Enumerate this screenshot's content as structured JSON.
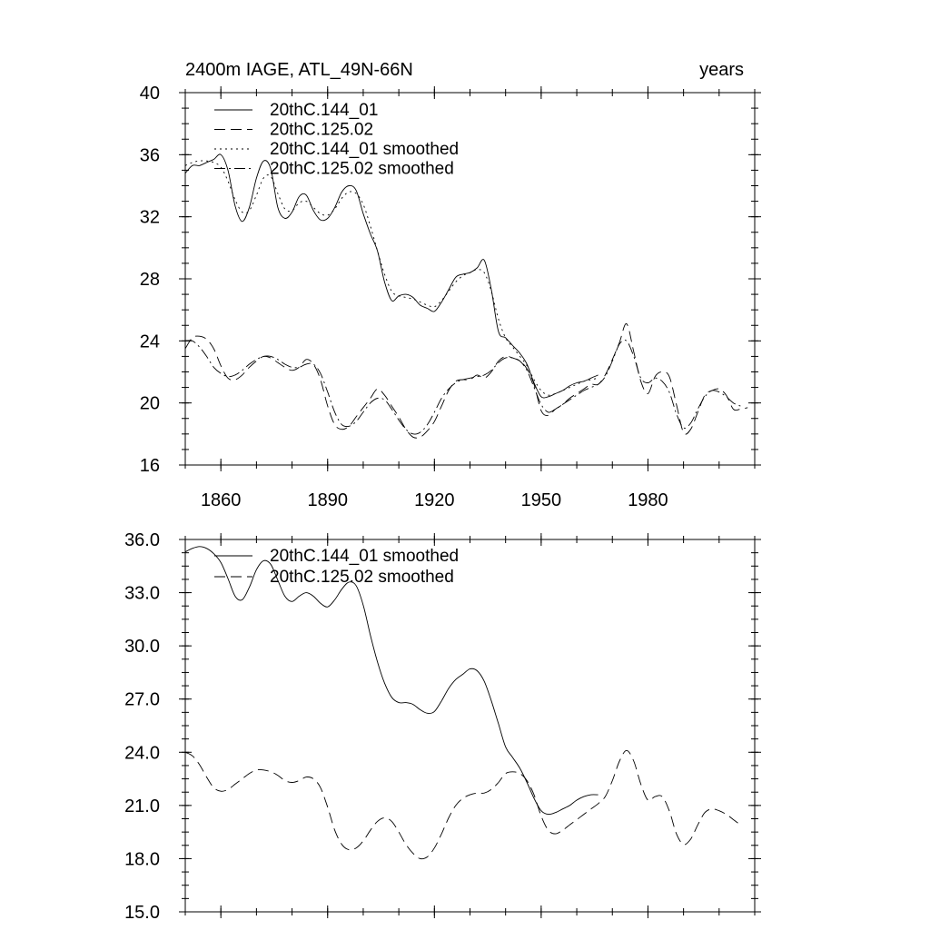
{
  "chart_data": [
    {
      "type": "line",
      "title": "2400m IAGE, ATL_49N-66N",
      "units": "years",
      "xlim": [
        1850,
        2010
      ],
      "ylim": [
        16,
        40
      ],
      "xticks": [
        1860,
        1890,
        1920,
        1950,
        1980
      ],
      "yticks": [
        16,
        20,
        24,
        28,
        32,
        36,
        40
      ],
      "ytick_labels": [
        "16",
        "20",
        "24",
        "28",
        "32",
        "36",
        "40"
      ],
      "legend_position": "top-left",
      "series": [
        {
          "name": "20thC.144_01",
          "style": "solid",
          "x": [
            1850,
            1852,
            1854,
            1856,
            1858,
            1860,
            1862,
            1864,
            1866,
            1868,
            1870,
            1872,
            1874,
            1876,
            1878,
            1880,
            1882,
            1884,
            1886,
            1888,
            1890,
            1892,
            1894,
            1896,
            1898,
            1900,
            1902,
            1904,
            1906,
            1908,
            1910,
            1912,
            1914,
            1916,
            1918,
            1920,
            1922,
            1924,
            1926,
            1928,
            1930,
            1932,
            1934,
            1936,
            1938,
            1940,
            1942,
            1944,
            1946,
            1948,
            1950,
            1952,
            1954,
            1956,
            1958,
            1960,
            1962,
            1964,
            1966
          ],
          "y": [
            34.8,
            35.3,
            35.3,
            35.5,
            35.7,
            36.0,
            35.0,
            32.7,
            31.7,
            32.6,
            34.5,
            35.6,
            35.1,
            32.6,
            31.9,
            32.3,
            33.3,
            33.4,
            32.4,
            31.8,
            31.9,
            32.6,
            33.6,
            34.0,
            33.7,
            32.2,
            30.9,
            29.8,
            27.8,
            26.6,
            26.9,
            27.0,
            26.8,
            26.3,
            26.1,
            25.9,
            26.5,
            27.3,
            28.1,
            28.3,
            28.4,
            28.7,
            29.2,
            27.3,
            24.6,
            24.2,
            23.7,
            23.2,
            22.5,
            21.3,
            20.4,
            20.4,
            20.6,
            20.8,
            21.1,
            21.3,
            21.4,
            21.6,
            21.8
          ]
        },
        {
          "name": "20thC.125.02",
          "style": "dashed",
          "x": [
            1850,
            1852,
            1854,
            1856,
            1858,
            1860,
            1862,
            1864,
            1866,
            1868,
            1870,
            1872,
            1874,
            1876,
            1878,
            1880,
            1882,
            1884,
            1886,
            1888,
            1890,
            1892,
            1894,
            1896,
            1898,
            1900,
            1902,
            1904,
            1906,
            1908,
            1910,
            1912,
            1914,
            1916,
            1918,
            1920,
            1922,
            1924,
            1926,
            1928,
            1930,
            1932,
            1934,
            1936,
            1938,
            1940,
            1942,
            1944,
            1946,
            1948,
            1950,
            1952,
            1954,
            1956,
            1958,
            1960,
            1962,
            1964,
            1966,
            1968,
            1970,
            1972,
            1974,
            1976,
            1978,
            1980,
            1982,
            1984,
            1986,
            1988,
            1990,
            1992,
            1994,
            1996,
            1998,
            2000,
            2002,
            2004,
            2006,
            2008
          ],
          "y": [
            23.5,
            24.2,
            24.3,
            24.1,
            23.5,
            22.4,
            21.6,
            21.5,
            21.8,
            22.3,
            22.7,
            23.0,
            22.9,
            22.6,
            22.3,
            22.1,
            22.3,
            22.8,
            22.5,
            21.5,
            19.8,
            18.6,
            18.3,
            18.5,
            19.1,
            19.7,
            20.3,
            20.9,
            20.5,
            19.8,
            19.1,
            18.3,
            17.8,
            17.8,
            18.2,
            18.8,
            19.8,
            20.8,
            21.4,
            21.5,
            21.5,
            21.8,
            21.6,
            22.0,
            22.7,
            23.0,
            22.9,
            22.7,
            22.2,
            21.2,
            19.5,
            19.2,
            19.6,
            19.9,
            20.3,
            20.6,
            20.9,
            21.2,
            21.2,
            21.8,
            22.8,
            23.9,
            25.1,
            23.3,
            21.4,
            20.6,
            21.7,
            22.0,
            21.7,
            19.9,
            18.1,
            18.3,
            19.4,
            20.5,
            20.8,
            20.9,
            20.5,
            19.6,
            19.6,
            19.7
          ]
        },
        {
          "name": "20thC.144_01 smoothed",
          "style": "dotted",
          "x": [
            1850,
            1852,
            1854,
            1856,
            1858,
            1860,
            1862,
            1864,
            1866,
            1868,
            1870,
            1872,
            1874,
            1876,
            1878,
            1880,
            1882,
            1884,
            1886,
            1888,
            1890,
            1892,
            1894,
            1896,
            1898,
            1900,
            1902,
            1904,
            1906,
            1908,
            1910,
            1912,
            1914,
            1916,
            1918,
            1920,
            1922,
            1924,
            1926,
            1928,
            1930,
            1932,
            1934,
            1936,
            1938,
            1940,
            1942,
            1944,
            1946,
            1948,
            1950,
            1952,
            1954,
            1956,
            1958,
            1960,
            1962,
            1964,
            1966
          ],
          "y": [
            35.3,
            35.5,
            35.6,
            35.6,
            35.5,
            35.2,
            34.3,
            33.1,
            32.3,
            32.4,
            33.4,
            34.5,
            34.6,
            33.5,
            32.5,
            32.4,
            32.9,
            33.0,
            32.6,
            32.2,
            32.1,
            32.5,
            33.2,
            33.6,
            33.5,
            32.8,
            31.4,
            29.8,
            28.3,
            27.2,
            26.9,
            26.8,
            26.7,
            26.5,
            26.3,
            26.2,
            26.6,
            27.2,
            27.8,
            28.2,
            28.4,
            28.6,
            28.4,
            27.2,
            25.4,
            24.2,
            23.6,
            23.0,
            22.4,
            21.5,
            20.8,
            20.5,
            20.6,
            20.8,
            21.0,
            21.2,
            21.4,
            21.5,
            21.6
          ]
        },
        {
          "name": "20thC.125.02 smoothed",
          "style": "dash-dot",
          "x": [
            1850,
            1852,
            1854,
            1856,
            1858,
            1860,
            1862,
            1864,
            1866,
            1868,
            1870,
            1872,
            1874,
            1876,
            1878,
            1880,
            1882,
            1884,
            1886,
            1888,
            1890,
            1892,
            1894,
            1896,
            1898,
            1900,
            1902,
            1904,
            1906,
            1908,
            1910,
            1912,
            1914,
            1916,
            1918,
            1920,
            1922,
            1924,
            1926,
            1928,
            1930,
            1932,
            1934,
            1936,
            1938,
            1940,
            1942,
            1944,
            1946,
            1948,
            1950,
            1952,
            1954,
            1956,
            1958,
            1960,
            1962,
            1964,
            1966,
            1968,
            1970,
            1972,
            1974,
            1976,
            1978,
            1980,
            1982,
            1984,
            1986,
            1988,
            1990,
            1992,
            1994,
            1996,
            1998,
            2000,
            2002,
            2004,
            2006
          ],
          "y": [
            24.0,
            24.0,
            23.6,
            23.0,
            22.3,
            21.9,
            21.7,
            21.8,
            22.1,
            22.5,
            22.8,
            23.0,
            23.0,
            22.8,
            22.5,
            22.3,
            22.3,
            22.5,
            22.5,
            21.9,
            20.7,
            19.4,
            18.6,
            18.5,
            18.8,
            19.4,
            20.0,
            20.3,
            20.2,
            19.6,
            18.9,
            18.3,
            18.0,
            18.1,
            18.6,
            19.4,
            20.3,
            20.9,
            21.3,
            21.5,
            21.6,
            21.7,
            21.8,
            22.1,
            22.6,
            22.9,
            22.9,
            22.7,
            22.1,
            21.0,
            19.9,
            19.4,
            19.6,
            19.9,
            20.2,
            20.5,
            20.8,
            21.0,
            21.2,
            21.7,
            22.7,
            23.8,
            24.0,
            23.0,
            21.6,
            21.3,
            21.6,
            21.4,
            20.7,
            19.3,
            18.4,
            18.7,
            19.6,
            20.4,
            20.8,
            20.7,
            20.4,
            20.0,
            19.8
          ]
        }
      ]
    },
    {
      "type": "line",
      "xlim": [
        1850,
        2010
      ],
      "ylim": [
        15,
        36
      ],
      "xticks": [
        1860,
        1890,
        1920,
        1950,
        1980
      ],
      "yticks": [
        15,
        18,
        21,
        24,
        27,
        30,
        33,
        36
      ],
      "ytick_labels": [
        "15.0",
        "18.0",
        "21.0",
        "24.0",
        "27.0",
        "30.0",
        "33.0",
        "36.0"
      ],
      "legend_position": "top-left",
      "series": [
        {
          "name": "20thC.144_01 smoothed",
          "style": "solid",
          "x": [
            1850,
            1852,
            1854,
            1856,
            1858,
            1860,
            1862,
            1864,
            1866,
            1868,
            1870,
            1872,
            1874,
            1876,
            1878,
            1880,
            1882,
            1884,
            1886,
            1888,
            1890,
            1892,
            1894,
            1896,
            1898,
            1900,
            1902,
            1904,
            1906,
            1908,
            1910,
            1912,
            1914,
            1916,
            1918,
            1920,
            1922,
            1924,
            1926,
            1928,
            1930,
            1932,
            1934,
            1936,
            1938,
            1940,
            1942,
            1944,
            1946,
            1948,
            1950,
            1952,
            1954,
            1956,
            1958,
            1960,
            1962,
            1964,
            1966
          ],
          "y": [
            35.3,
            35.5,
            35.6,
            35.5,
            35.2,
            34.7,
            33.8,
            32.8,
            32.6,
            33.3,
            34.3,
            34.8,
            34.6,
            33.7,
            32.8,
            32.5,
            32.8,
            33.0,
            32.8,
            32.4,
            32.2,
            32.6,
            33.2,
            33.6,
            33.4,
            32.3,
            30.6,
            29.1,
            27.9,
            27.1,
            26.8,
            26.8,
            26.7,
            26.4,
            26.2,
            26.3,
            26.9,
            27.6,
            28.1,
            28.4,
            28.7,
            28.6,
            28.0,
            26.9,
            25.6,
            24.3,
            23.7,
            23.1,
            22.3,
            21.4,
            20.7,
            20.5,
            20.6,
            20.8,
            21.0,
            21.3,
            21.5,
            21.6,
            21.6
          ]
        },
        {
          "name": "20thC.125.02 smoothed",
          "style": "dashed",
          "x": [
            1850,
            1852,
            1854,
            1856,
            1858,
            1860,
            1862,
            1864,
            1866,
            1868,
            1870,
            1872,
            1874,
            1876,
            1878,
            1880,
            1882,
            1884,
            1886,
            1888,
            1890,
            1892,
            1894,
            1896,
            1898,
            1900,
            1902,
            1904,
            1906,
            1908,
            1910,
            1912,
            1914,
            1916,
            1918,
            1920,
            1922,
            1924,
            1926,
            1928,
            1930,
            1932,
            1934,
            1936,
            1938,
            1940,
            1942,
            1944,
            1946,
            1948,
            1950,
            1952,
            1954,
            1956,
            1958,
            1960,
            1962,
            1964,
            1966,
            1968,
            1970,
            1972,
            1974,
            1976,
            1978,
            1980,
            1982,
            1984,
            1986,
            1988,
            1990,
            1992,
            1994,
            1996,
            1998,
            2000,
            2002,
            2004,
            2006
          ],
          "y": [
            24.0,
            23.8,
            23.3,
            22.6,
            22.0,
            21.8,
            21.9,
            22.2,
            22.5,
            22.8,
            23.0,
            23.0,
            22.9,
            22.7,
            22.4,
            22.3,
            22.4,
            22.6,
            22.5,
            22.0,
            20.9,
            19.6,
            18.8,
            18.5,
            18.6,
            19.0,
            19.6,
            20.1,
            20.3,
            20.1,
            19.5,
            18.8,
            18.3,
            18.0,
            18.1,
            18.6,
            19.4,
            20.3,
            21.0,
            21.4,
            21.6,
            21.7,
            21.7,
            21.9,
            22.3,
            22.8,
            22.9,
            22.8,
            22.4,
            21.6,
            20.4,
            19.6,
            19.4,
            19.6,
            19.9,
            20.2,
            20.5,
            20.8,
            21.1,
            21.5,
            22.4,
            23.5,
            24.1,
            23.5,
            22.2,
            21.3,
            21.5,
            21.5,
            20.7,
            19.4,
            18.8,
            19.1,
            19.9,
            20.6,
            20.8,
            20.7,
            20.5,
            20.2,
            19.9
          ]
        }
      ]
    }
  ]
}
